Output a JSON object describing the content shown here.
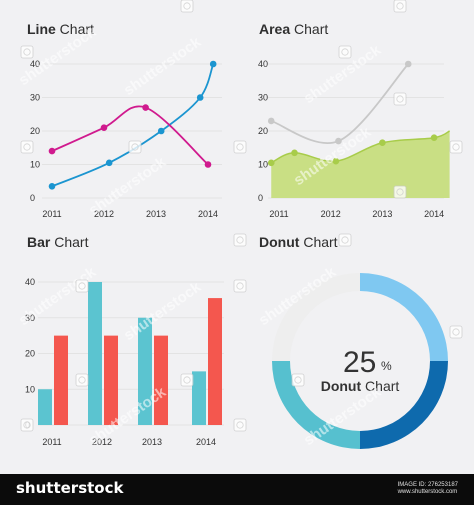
{
  "colors": {
    "panel": "#f1f1f3",
    "grid": "#e3e3e3",
    "line_blue": "#1b95d0",
    "line_magenta": "#d01a8e",
    "area_fill": "#c9df84",
    "area_stroke": "#a8cc4a",
    "area_gray_line": "#c8c8c8",
    "bar_teal": "#5bc4d0",
    "bar_red": "#f4574e",
    "donut_light_blue": "#7fc8f1",
    "donut_dark_blue": "#0e6aad",
    "donut_teal": "#56c0cf",
    "donut_remainder": "#eeeeee"
  },
  "chart_data": [
    {
      "type": "line",
      "title_bold": "Line",
      "title_rest": "Chart",
      "categories": [
        "2011",
        "2012",
        "2013",
        "2014"
      ],
      "yticks": [
        "0",
        "10",
        "20",
        "30",
        "40"
      ],
      "ylim": [
        0,
        40
      ],
      "grid": true,
      "series": [
        {
          "color": "#1b95d0",
          "points": [
            [
              0,
              3.5
            ],
            [
              1.1,
              10.5
            ],
            [
              2.1,
              20
            ],
            [
              2.85,
              30
            ],
            [
              3.1,
              40
            ]
          ]
        },
        {
          "color": "#d01a8e",
          "points": [
            [
              0,
              14
            ],
            [
              1,
              21
            ],
            [
              1.8,
              27
            ],
            [
              3,
              10
            ]
          ]
        }
      ]
    },
    {
      "type": "area",
      "title_bold": "Area",
      "title_rest": "Chart",
      "categories": [
        "2011",
        "2012",
        "2013",
        "2014"
      ],
      "yticks": [
        "0",
        "10",
        "20",
        "30",
        "40"
      ],
      "ylim": [
        0,
        40
      ],
      "grid": true,
      "series": [
        {
          "kind": "line",
          "color": "#c8c8c8",
          "points": [
            [
              -0.15,
              23
            ],
            [
              1.15,
              17
            ],
            [
              2.5,
              40
            ]
          ]
        },
        {
          "kind": "area",
          "color": "#c9df84",
          "points": [
            [
              -0.15,
              10.5
            ],
            [
              0.3,
              13.5
            ],
            [
              1.1,
              11
            ],
            [
              2,
              16.5
            ],
            [
              3,
              18
            ],
            [
              3.3,
              20
            ]
          ]
        }
      ]
    },
    {
      "type": "bar",
      "title_bold": "Bar",
      "title_rest": "Chart",
      "categories": [
        "2011",
        "2012",
        "2013",
        "2014"
      ],
      "yticks": [
        "0",
        "10",
        "20",
        "30",
        "40"
      ],
      "ylim": [
        0,
        40
      ],
      "grid": true,
      "series": [
        {
          "color": "#5bc4d0",
          "values": [
            10,
            40,
            30,
            15
          ]
        },
        {
          "color": "#f4574e",
          "values": [
            25,
            25,
            25,
            35.5
          ]
        }
      ]
    },
    {
      "type": "pie",
      "title_bold": "Donut",
      "title_rest": "Chart",
      "center_value": "25",
      "center_unit": "%",
      "center_label_bold": "Donut",
      "center_label_rest": "Chart",
      "slices": [
        {
          "value": 25,
          "color": "#7fc8f1"
        },
        {
          "value": 25,
          "color": "#0e6aad"
        },
        {
          "value": 25,
          "color": "#56c0cf"
        },
        {
          "value": 25,
          "color": "#eeeeee"
        }
      ]
    }
  ],
  "watermark": {
    "text": "shutterstock",
    "icon": "camera-aperture-icon"
  },
  "footer": {
    "brand": "shutterstock",
    "meta_line1": "IMAGE ID: 276253187",
    "meta_line2": "www.shutterstock.com"
  }
}
